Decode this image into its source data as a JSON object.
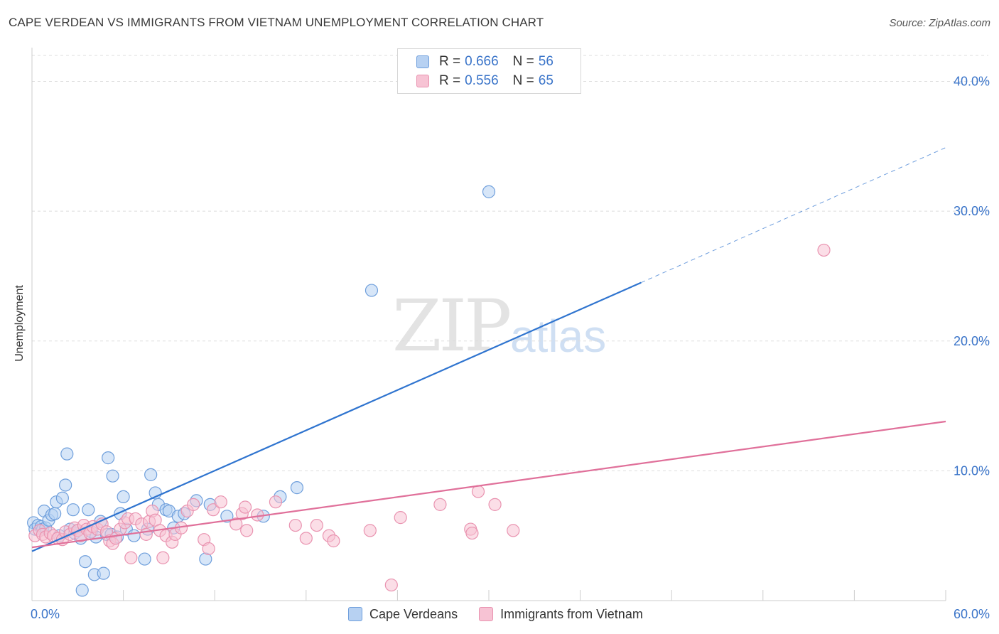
{
  "title": "CAPE VERDEAN VS IMMIGRANTS FROM VIETNAM UNEMPLOYMENT CORRELATION CHART",
  "source": "Source: ZipAtlas.com",
  "watermark": {
    "zip": "ZIP",
    "atlas": "atlas"
  },
  "legend": {
    "series1": {
      "r_label": "R =",
      "r_value": "0.666",
      "n_label": "N =",
      "n_value": "56"
    },
    "series2": {
      "r_label": "R =",
      "r_value": "0.556",
      "n_label": "N =",
      "n_value": "65"
    }
  },
  "bottom_legend": {
    "series1": "Cape Verdeans",
    "series2": "Immigrants from Vietnam"
  },
  "colors": {
    "blue_fill": "#b7d1f2",
    "blue_stroke": "#6f9fdc",
    "blue_line": "#2f74cf",
    "pink_fill": "#f7c3d4",
    "pink_stroke": "#e993b0",
    "pink_line": "#e0709a",
    "grid": "#dddddd",
    "axis_text": "#3a74c9"
  },
  "chart_data": {
    "type": "scatter",
    "title": "CAPE VERDEAN VS IMMIGRANTS FROM VIETNAM UNEMPLOYMENT CORRELATION CHART",
    "xlabel": "",
    "ylabel": "Unemployment",
    "xlim": [
      0,
      60
    ],
    "ylim": [
      0,
      42
    ],
    "x_tick_labels": [
      "0.0%",
      "60.0%"
    ],
    "y_ticks": [
      10,
      20,
      30,
      40
    ],
    "y_tick_labels": [
      "10.0%",
      "20.0%",
      "30.0%",
      "40.0%"
    ],
    "series": [
      {
        "name": "Cape Verdeans",
        "color": "blue",
        "trendline": {
          "x0": 0,
          "y0": 3.8,
          "x1": 40,
          "y1": 24.5,
          "dashed_to_x": 60,
          "dashed_to_y": 34.9
        },
        "points": [
          [
            0.1,
            6.0
          ],
          [
            0.2,
            5.5
          ],
          [
            0.4,
            5.8
          ],
          [
            0.6,
            5.7
          ],
          [
            0.7,
            5.5
          ],
          [
            0.8,
            6.9
          ],
          [
            0.9,
            5.6
          ],
          [
            1.1,
            6.2
          ],
          [
            1.3,
            6.6
          ],
          [
            1.5,
            6.7
          ],
          [
            1.6,
            7.6
          ],
          [
            1.8,
            5.0
          ],
          [
            2.0,
            7.9
          ],
          [
            2.2,
            8.9
          ],
          [
            2.3,
            11.3
          ],
          [
            2.5,
            5.5
          ],
          [
            2.7,
            7.0
          ],
          [
            2.8,
            5.2
          ],
          [
            3.0,
            5.4
          ],
          [
            3.2,
            4.8
          ],
          [
            3.5,
            3.0
          ],
          [
            3.7,
            7.0
          ],
          [
            3.9,
            5.3
          ],
          [
            4.1,
            2.0
          ],
          [
            4.2,
            4.9
          ],
          [
            4.5,
            6.1
          ],
          [
            4.7,
            2.1
          ],
          [
            4.9,
            5.1
          ],
          [
            5.0,
            11.0
          ],
          [
            5.2,
            5.1
          ],
          [
            5.3,
            9.6
          ],
          [
            5.6,
            4.9
          ],
          [
            5.8,
            6.7
          ],
          [
            6.0,
            8.0
          ],
          [
            6.2,
            5.5
          ],
          [
            6.7,
            5.0
          ],
          [
            7.4,
            3.2
          ],
          [
            7.6,
            5.5
          ],
          [
            7.8,
            9.7
          ],
          [
            8.1,
            8.3
          ],
          [
            8.3,
            7.4
          ],
          [
            8.8,
            7.0
          ],
          [
            9.0,
            6.9
          ],
          [
            9.3,
            5.6
          ],
          [
            9.6,
            6.5
          ],
          [
            10.0,
            6.7
          ],
          [
            10.8,
            7.7
          ],
          [
            11.4,
            3.2
          ],
          [
            11.7,
            7.4
          ],
          [
            12.8,
            6.5
          ],
          [
            15.2,
            6.5
          ],
          [
            16.3,
            8.0
          ],
          [
            17.4,
            8.7
          ],
          [
            22.3,
            23.9
          ],
          [
            30.0,
            31.5
          ],
          [
            3.3,
            0.8
          ]
        ]
      },
      {
        "name": "Immigrants from Vietnam",
        "color": "pink",
        "trendline": {
          "x0": 0,
          "y0": 4.1,
          "x1": 60,
          "y1": 13.8
        },
        "points": [
          [
            0.2,
            5.0
          ],
          [
            0.5,
            5.4
          ],
          [
            0.7,
            5.1
          ],
          [
            0.9,
            4.9
          ],
          [
            1.2,
            5.2
          ],
          [
            1.4,
            5.0
          ],
          [
            1.7,
            4.8
          ],
          [
            2.0,
            4.7
          ],
          [
            2.2,
            5.3
          ],
          [
            2.5,
            5.1
          ],
          [
            2.8,
            5.6
          ],
          [
            3.0,
            5.4
          ],
          [
            3.2,
            5.0
          ],
          [
            3.4,
            5.8
          ],
          [
            3.6,
            5.5
          ],
          [
            3.8,
            5.2
          ],
          [
            4.0,
            5.7
          ],
          [
            4.3,
            5.5
          ],
          [
            4.6,
            5.9
          ],
          [
            4.9,
            5.3
          ],
          [
            5.1,
            4.6
          ],
          [
            5.3,
            4.4
          ],
          [
            5.5,
            4.8
          ],
          [
            5.8,
            5.5
          ],
          [
            6.1,
            6.0
          ],
          [
            6.3,
            6.3
          ],
          [
            6.5,
            3.3
          ],
          [
            6.8,
            6.3
          ],
          [
            7.2,
            5.9
          ],
          [
            7.5,
            5.1
          ],
          [
            7.7,
            6.1
          ],
          [
            7.9,
            6.9
          ],
          [
            8.1,
            6.2
          ],
          [
            8.4,
            5.4
          ],
          [
            8.6,
            3.3
          ],
          [
            8.8,
            5.0
          ],
          [
            9.2,
            4.5
          ],
          [
            9.4,
            5.1
          ],
          [
            9.8,
            5.6
          ],
          [
            10.2,
            6.9
          ],
          [
            10.6,
            7.4
          ],
          [
            11.3,
            4.7
          ],
          [
            11.6,
            4.0
          ],
          [
            11.9,
            7.0
          ],
          [
            12.4,
            7.6
          ],
          [
            13.4,
            5.9
          ],
          [
            13.8,
            6.7
          ],
          [
            14.0,
            7.2
          ],
          [
            14.1,
            5.4
          ],
          [
            14.8,
            6.6
          ],
          [
            16.0,
            7.6
          ],
          [
            17.3,
            5.8
          ],
          [
            18.0,
            4.8
          ],
          [
            18.7,
            5.8
          ],
          [
            19.5,
            5.0
          ],
          [
            19.8,
            4.6
          ],
          [
            22.2,
            5.4
          ],
          [
            23.6,
            1.2
          ],
          [
            24.2,
            6.4
          ],
          [
            26.8,
            7.4
          ],
          [
            28.8,
            5.5
          ],
          [
            28.9,
            5.2
          ],
          [
            29.3,
            8.4
          ],
          [
            30.4,
            7.4
          ],
          [
            31.6,
            5.4
          ]
        ],
        "outliers": [
          [
            52.0,
            27.0
          ]
        ]
      }
    ]
  }
}
